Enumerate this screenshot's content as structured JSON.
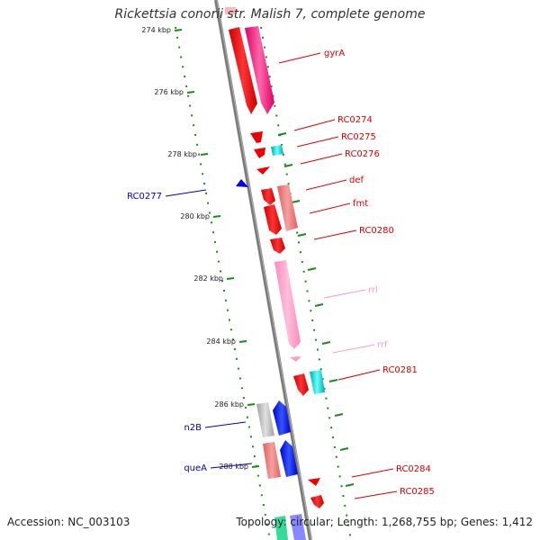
{
  "title": "Rickettsia conorii str. Malish 7, complete genome",
  "footer": {
    "accession": "Accession: NC_003103",
    "stats": "Topology: circular; Length: 1,268,755 bp; Genes: 1,412"
  },
  "colors": {
    "backbone": "#808080",
    "ticks": "#008000",
    "forward_gene": "#ff0000",
    "reverse_gene": "#0000ff",
    "rrna": "#ff99cc",
    "trna": "#00cccc"
  },
  "kbp_ticks": [
    {
      "label": "274 kbp"
    },
    {
      "label": "276 kbp"
    },
    {
      "label": "278 kbp"
    },
    {
      "label": "280 kbp"
    },
    {
      "label": "282 kbp"
    },
    {
      "label": "284 kbp"
    },
    {
      "label": "286 kbp"
    },
    {
      "label": "288 kbp"
    }
  ],
  "gene_labels": [
    {
      "name": "gyrA",
      "color": "#dd0000"
    },
    {
      "name": "RC0274",
      "color": "#dd0000"
    },
    {
      "name": "RC0275",
      "color": "#dd0000"
    },
    {
      "name": "RC0276",
      "color": "#dd0000"
    },
    {
      "name": "RC0277",
      "color": "#0000bb"
    },
    {
      "name": "def",
      "color": "#dd0000"
    },
    {
      "name": "fmt",
      "color": "#dd0000"
    },
    {
      "name": "RC0280",
      "color": "#dd0000"
    },
    {
      "name": "rrl",
      "color": "#ff99cc"
    },
    {
      "name": "rrf",
      "color": "#ff99cc"
    },
    {
      "name": "RC0281",
      "color": "#dd0000"
    },
    {
      "name": "n2B",
      "color": "#0000bb"
    },
    {
      "name": "queA",
      "color": "#0000bb"
    },
    {
      "name": "RC0284",
      "color": "#dd0000"
    },
    {
      "name": "RC0285",
      "color": "#dd0000"
    }
  ]
}
